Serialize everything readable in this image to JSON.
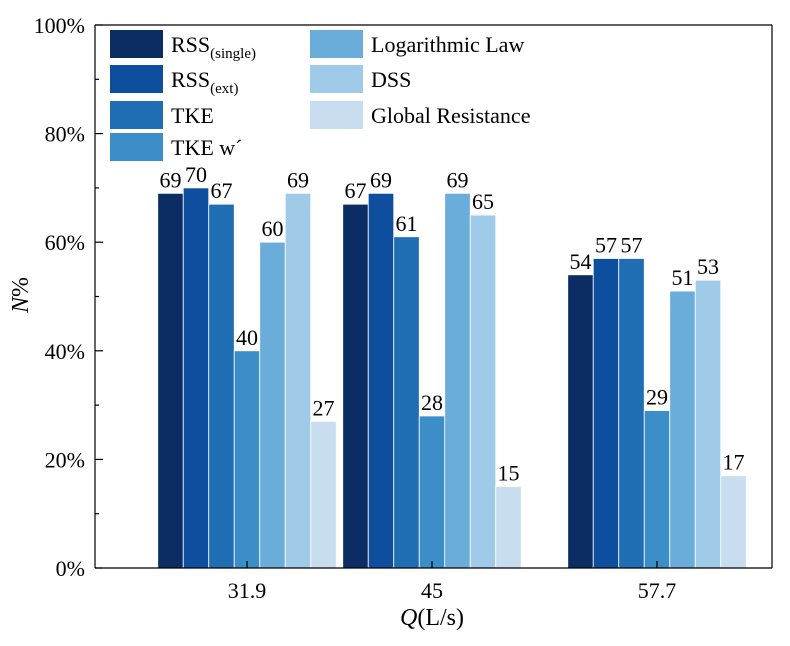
{
  "chart_data": {
    "type": "bar",
    "xlabel_var": "Q",
    "xlabel_unit": "(L/s)",
    "ylabel_var": "N",
    "ylabel_unit": "%",
    "categories": [
      "31.9",
      "45",
      "57.7"
    ],
    "ylim": [
      0,
      100
    ],
    "yticks": [
      "0%",
      "20%",
      "40%",
      "60%",
      "80%",
      "100%"
    ],
    "ytick_values": [
      0,
      20,
      40,
      60,
      80,
      100
    ],
    "legend_placement": "top-left",
    "grid": false,
    "series": [
      {
        "name": "RSS",
        "subscript": "(single)",
        "color": "#0b2d64",
        "values": [
          69,
          67,
          54
        ]
      },
      {
        "name": "RSS",
        "subscript": "(ext)",
        "color": "#0d4e9e",
        "values": [
          70,
          69,
          57
        ]
      },
      {
        "name": "TKE",
        "subscript": "",
        "color": "#1f6db3",
        "values": [
          67,
          61,
          57
        ]
      },
      {
        "name": "TKE w´",
        "subscript": "",
        "color": "#3b8ec8",
        "values": [
          40,
          28,
          29
        ]
      },
      {
        "name": "Logarithmic Law",
        "subscript": "",
        "color": "#6aadda",
        "values": [
          60,
          69,
          51
        ]
      },
      {
        "name": "DSS",
        "subscript": "",
        "color": "#9fcbe8",
        "values": [
          69,
          65,
          53
        ]
      },
      {
        "name": "Global Resistance",
        "subscript": "",
        "color": "#c8def0",
        "values": [
          27,
          15,
          17
        ]
      }
    ]
  }
}
